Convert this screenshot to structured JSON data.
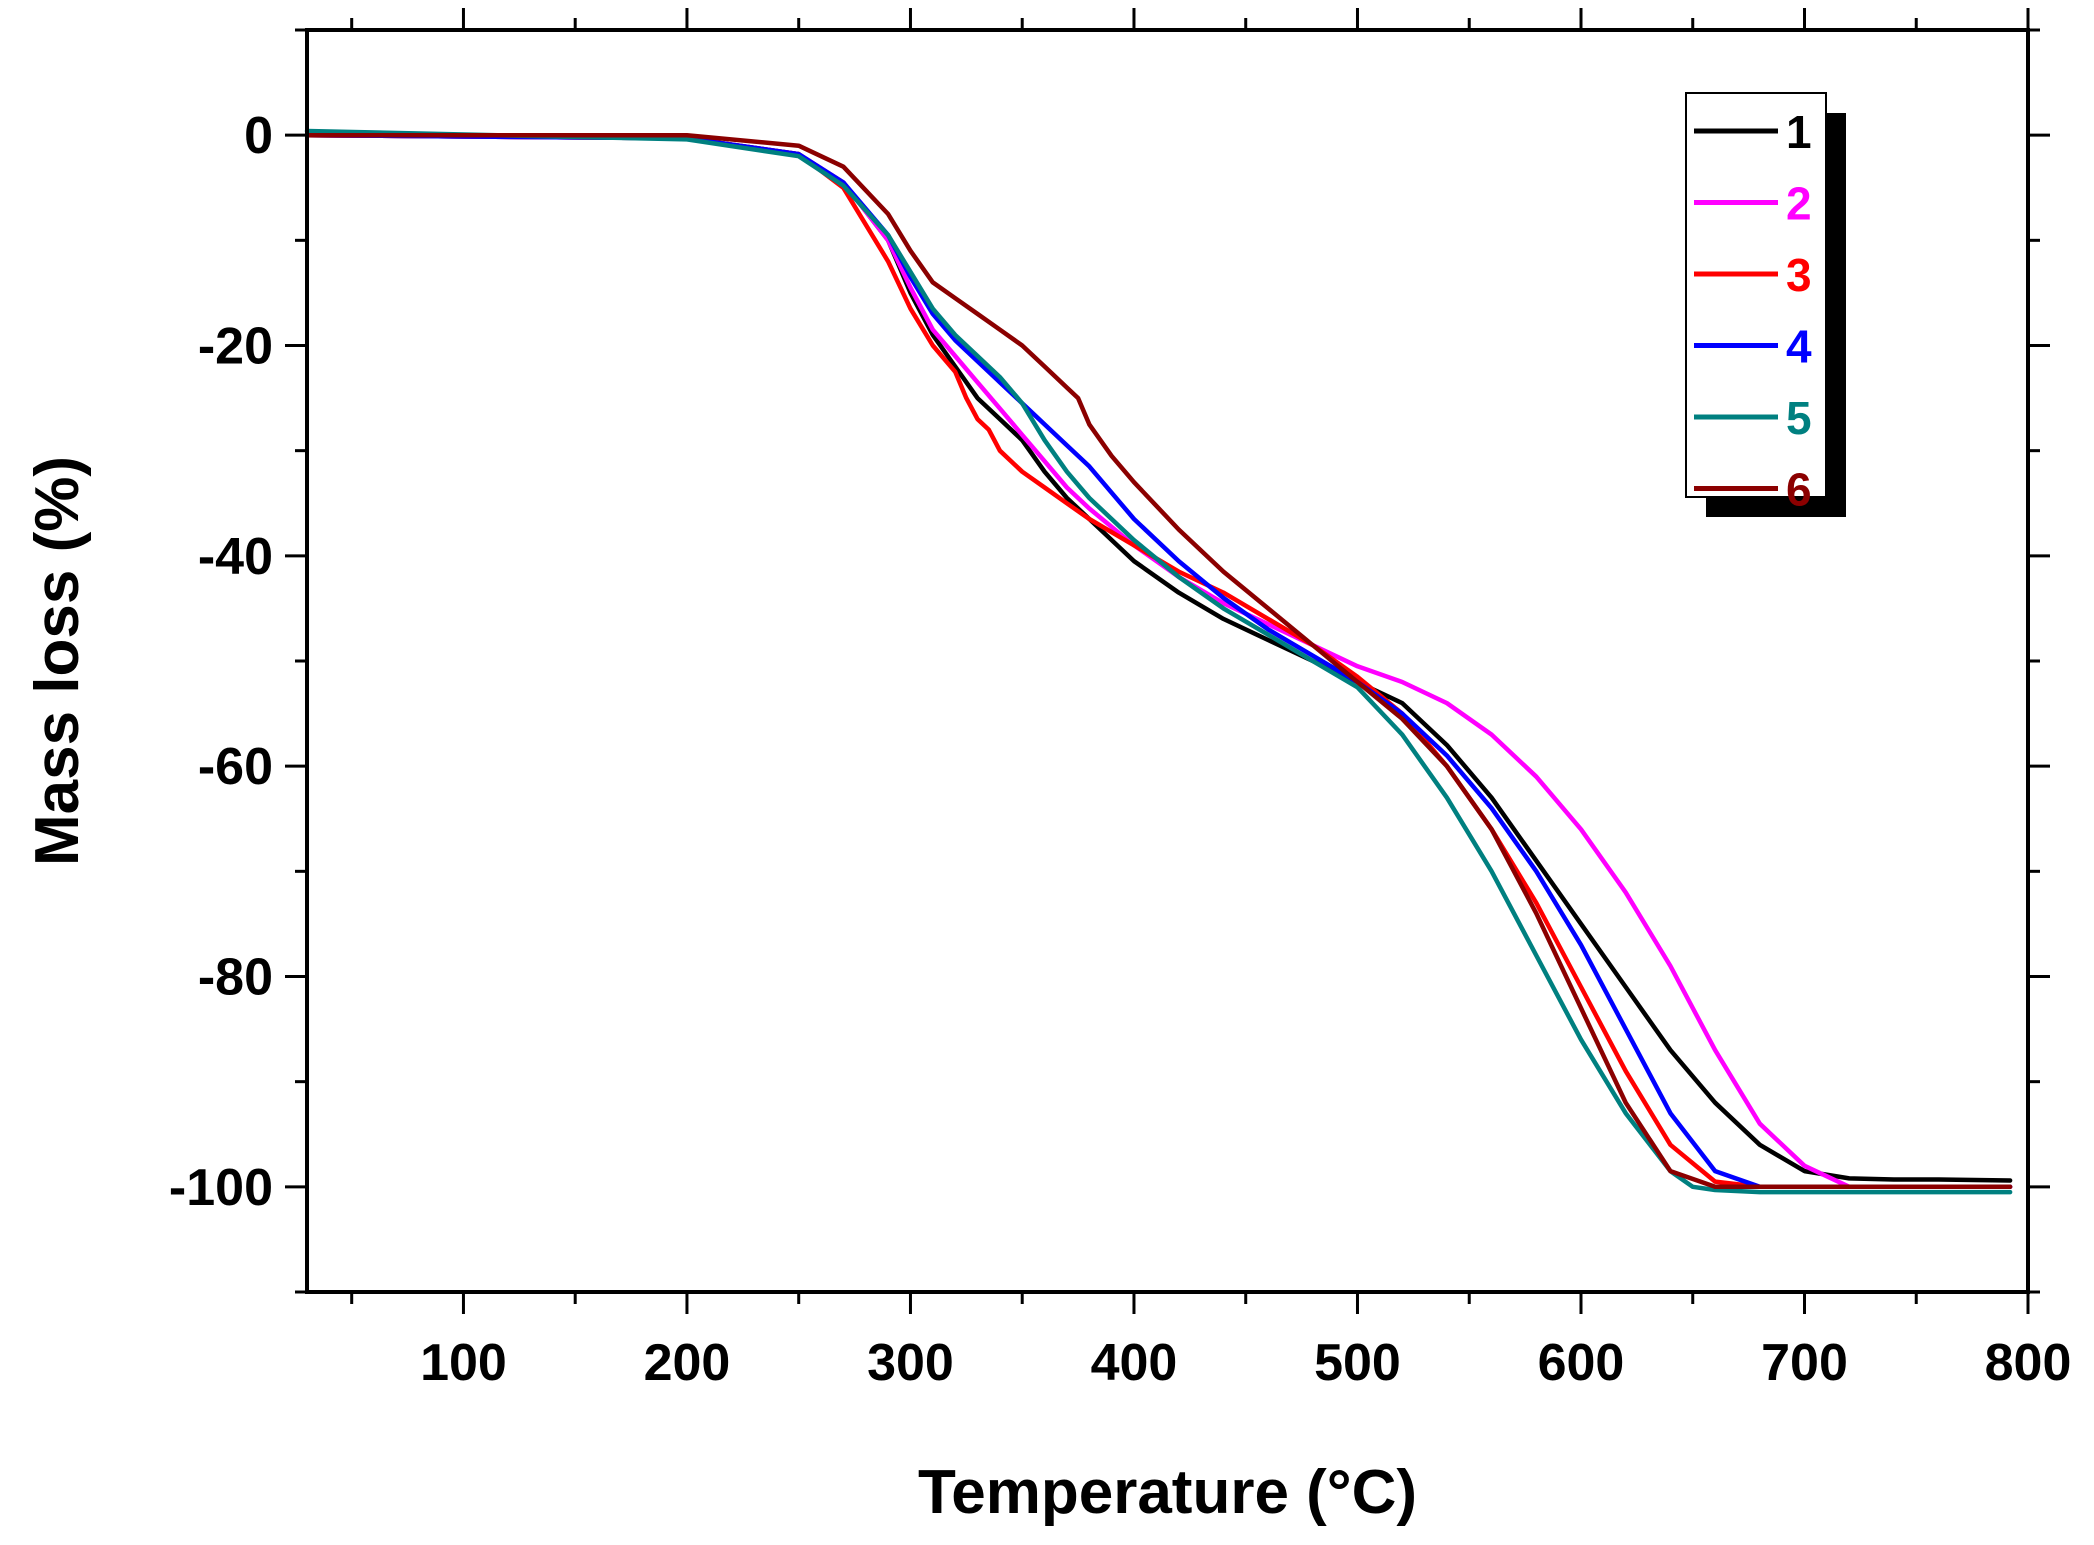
{
  "chart_data": {
    "type": "line",
    "xlabel": "Temperature (°C)",
    "ylabel": "Mass loss (%)",
    "xlim": [
      30,
      800
    ],
    "ylim": [
      -110,
      10
    ],
    "xticks": [
      100,
      200,
      300,
      400,
      500,
      600,
      700,
      800
    ],
    "xtick_labels": [
      "100",
      "200",
      "300",
      "400",
      "500",
      "600",
      "700",
      "800"
    ],
    "yticks": [
      0,
      -20,
      -40,
      -60,
      -80,
      -100
    ],
    "ytick_labels": [
      "0",
      "-20",
      "-40",
      "-60",
      "-80",
      "-100"
    ],
    "legend_position": "top-right",
    "series": [
      {
        "name": "1",
        "color": "#000000",
        "x": [
          30,
          200,
          250,
          270,
          290,
          300,
          310,
          320,
          330,
          340,
          350,
          360,
          370,
          380,
          400,
          420,
          440,
          460,
          480,
          500,
          520,
          540,
          560,
          580,
          600,
          620,
          640,
          660,
          680,
          700,
          720,
          740,
          760,
          792
        ],
        "y": [
          0,
          -0.3,
          -1.8,
          -4.5,
          -10,
          -15,
          -19,
          -22,
          -25,
          -27,
          -29,
          -32,
          -34.5,
          -36.5,
          -40.5,
          -43.5,
          -46,
          -48,
          -50,
          -52,
          -54,
          -58,
          -63,
          -69,
          -75,
          -81,
          -87,
          -92,
          -96,
          -98.5,
          -99.2,
          -99.3,
          -99.3,
          -99.4
        ]
      },
      {
        "name": "2",
        "color": "#ff00ff",
        "x": [
          30,
          200,
          250,
          270,
          290,
          300,
          310,
          320,
          330,
          340,
          350,
          360,
          370,
          380,
          400,
          420,
          440,
          460,
          480,
          500,
          520,
          540,
          560,
          580,
          600,
          620,
          640,
          660,
          680,
          700,
          720,
          740,
          760,
          792
        ],
        "y": [
          0,
          -0.3,
          -1.8,
          -4.5,
          -10,
          -14.5,
          -18.5,
          -21,
          -23.5,
          -26,
          -28.5,
          -31,
          -33.5,
          -35.5,
          -39,
          -42,
          -44.5,
          -46.5,
          -48.5,
          -50.5,
          -52,
          -54,
          -57,
          -61,
          -66,
          -72,
          -79,
          -87,
          -94,
          -98,
          -100,
          -100,
          -100,
          -100
        ]
      },
      {
        "name": "3",
        "color": "#ff0000",
        "x": [
          30,
          200,
          250,
          270,
          290,
          300,
          310,
          320,
          325,
          330,
          335,
          340,
          350,
          360,
          370,
          380,
          400,
          420,
          440,
          460,
          480,
          500,
          520,
          540,
          560,
          580,
          600,
          620,
          640,
          660,
          680,
          700,
          720,
          760,
          792
        ],
        "y": [
          0,
          -0.3,
          -1.8,
          -5,
          -12,
          -16.5,
          -20,
          -22.5,
          -25,
          -27,
          -28,
          -30,
          -32,
          -33.5,
          -35,
          -36.5,
          -39,
          -41.5,
          -43.5,
          -46,
          -48.5,
          -51.5,
          -55,
          -60,
          -66,
          -73,
          -81,
          -89,
          -96,
          -99.5,
          -100,
          -100,
          -100,
          -100,
          -100
        ]
      },
      {
        "name": "4",
        "color": "#0000ff",
        "x": [
          30,
          200,
          250,
          270,
          290,
          300,
          310,
          320,
          330,
          340,
          350,
          360,
          370,
          380,
          390,
          400,
          420,
          440,
          460,
          480,
          500,
          520,
          540,
          560,
          580,
          600,
          620,
          640,
          660,
          680,
          700,
          720,
          760,
          792
        ],
        "y": [
          0,
          -0.3,
          -1.8,
          -4.5,
          -9.5,
          -13.5,
          -17,
          -19.5,
          -21.5,
          -23.5,
          -25.5,
          -27.5,
          -29.5,
          -31.5,
          -34,
          -36.5,
          -40.5,
          -44,
          -47,
          -49.5,
          -52,
          -55,
          -59,
          -64,
          -70,
          -77,
          -85,
          -93,
          -98.5,
          -100,
          -100,
          -100,
          -100,
          -100
        ]
      },
      {
        "name": "5",
        "color": "#008080",
        "x": [
          30,
          200,
          250,
          270,
          290,
          300,
          310,
          320,
          330,
          340,
          350,
          360,
          370,
          380,
          390,
          400,
          420,
          440,
          460,
          480,
          500,
          520,
          540,
          560,
          580,
          600,
          620,
          640,
          650,
          660,
          680,
          700,
          740,
          792
        ],
        "y": [
          0.4,
          -0.4,
          -2,
          -4.8,
          -9.5,
          -13,
          -16.5,
          -19,
          -21,
          -23,
          -25.5,
          -29,
          -32,
          -34.5,
          -36.5,
          -38.5,
          -42,
          -45,
          -47.5,
          -50,
          -52.5,
          -57,
          -63,
          -70,
          -78,
          -86,
          -93,
          -98.5,
          -100,
          -100.3,
          -100.5,
          -100.5,
          -100.5,
          -100.5
        ]
      },
      {
        "name": "6",
        "color": "#8b0000",
        "x": [
          30,
          200,
          250,
          270,
          290,
          300,
          310,
          320,
          330,
          340,
          350,
          360,
          370,
          375,
          380,
          390,
          400,
          420,
          440,
          460,
          480,
          500,
          520,
          540,
          560,
          580,
          600,
          620,
          640,
          660,
          680,
          700,
          760,
          792
        ],
        "y": [
          0,
          0,
          -1,
          -3,
          -7.5,
          -11,
          -14,
          -15.5,
          -17,
          -18.5,
          -20,
          -22,
          -24,
          -25,
          -27.5,
          -30.5,
          -33,
          -37.5,
          -41.5,
          -45,
          -48.5,
          -52,
          -55.5,
          -60,
          -66,
          -74,
          -83,
          -92,
          -98.5,
          -100,
          -100,
          -100,
          -100,
          -100
        ]
      }
    ]
  }
}
